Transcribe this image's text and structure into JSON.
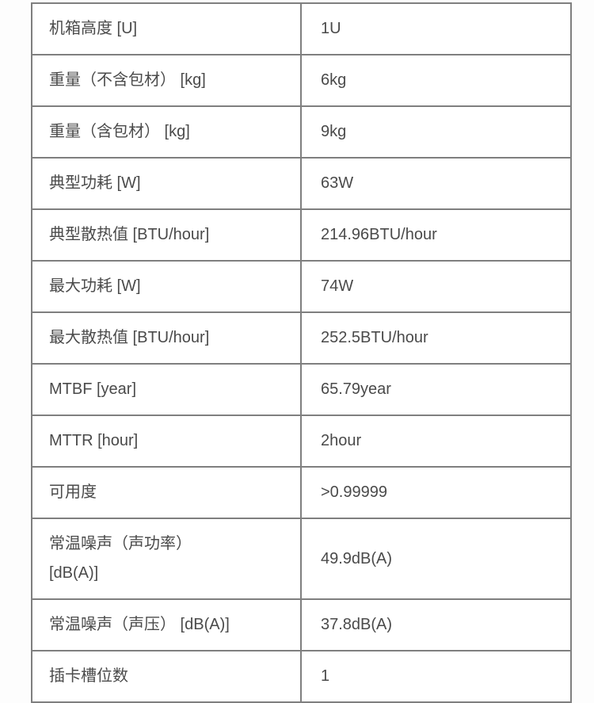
{
  "colors": {
    "border": "#7f7f7f",
    "text": "#4a4a4a",
    "background": "#fdfdfd"
  },
  "table": {
    "description": "product-specification-table",
    "columns": [
      "parameter",
      "value"
    ],
    "rows": [
      {
        "label": "机箱高度 [U]",
        "value": "1U"
      },
      {
        "label": "重量（不含包材） [kg]",
        "value": "6kg"
      },
      {
        "label": "重量（含包材） [kg]",
        "value": "9kg"
      },
      {
        "label": "典型功耗 [W]",
        "value": "63W"
      },
      {
        "label": "典型散热值 [BTU/hour]",
        "value": "214.96BTU/hour"
      },
      {
        "label": "最大功耗 [W]",
        "value": "74W"
      },
      {
        "label": "最大散热值 [BTU/hour]",
        "value": "252.5BTU/hour"
      },
      {
        "label": "MTBF [year]",
        "value": "65.79year"
      },
      {
        "label": "MTTR [hour]",
        "value": "2hour"
      },
      {
        "label": "可用度",
        "value": ">0.99999"
      },
      {
        "label": "常温噪声（声功率）\n[dB(A)]",
        "value": "49.9dB(A)"
      },
      {
        "label": "常温噪声（声压） [dB(A)]",
        "value": "37.8dB(A)"
      },
      {
        "label": "插卡槽位数",
        "value": "1"
      }
    ]
  }
}
